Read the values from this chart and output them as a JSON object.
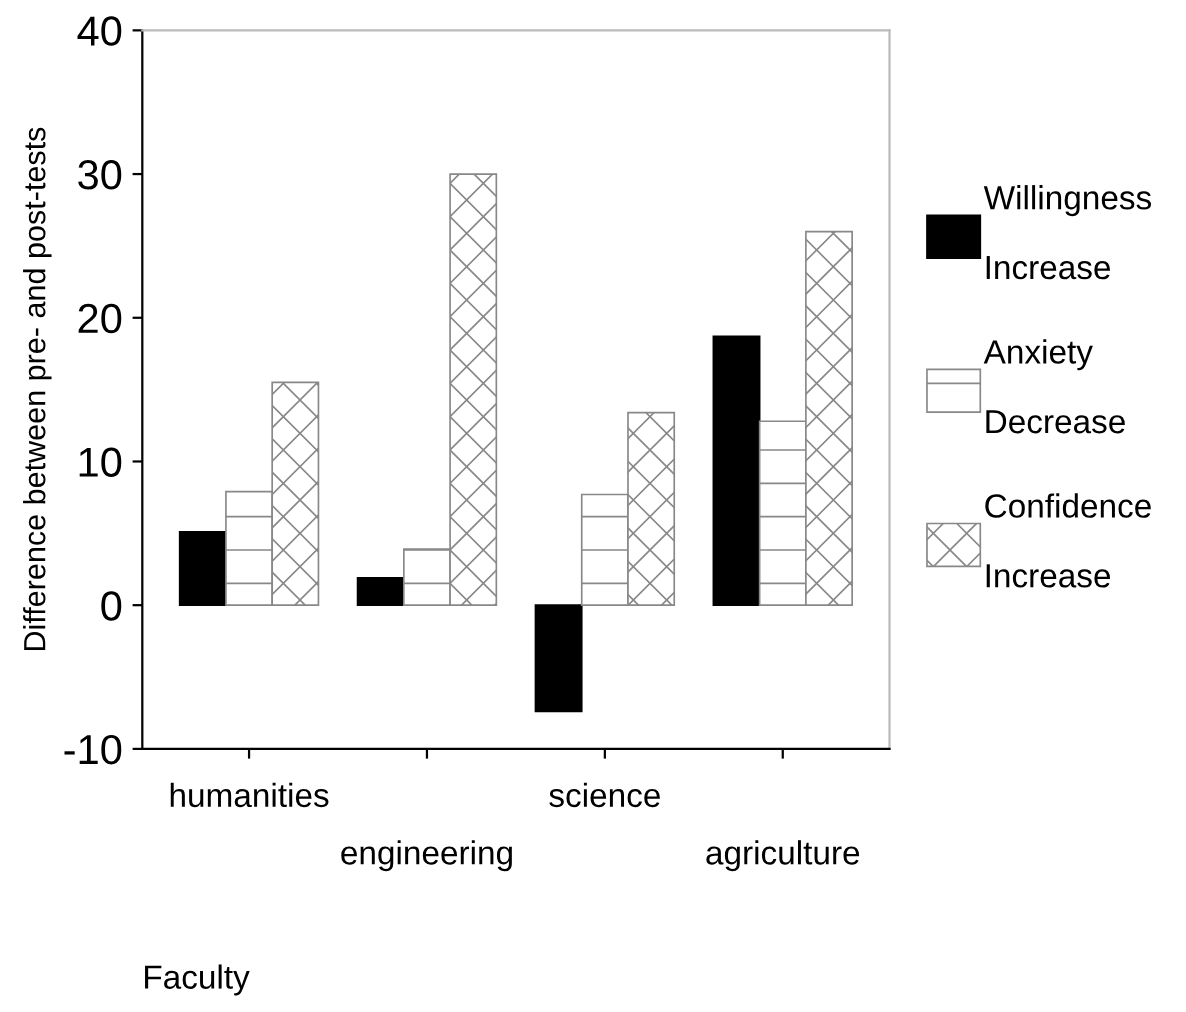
{
  "chart_data": {
    "type": "bar",
    "xlabel": "Faculty",
    "ylabel": "Difference between pre- and post-tests",
    "categories": [
      "humanities",
      "engineering",
      "science",
      "agriculture"
    ],
    "series": [
      {
        "name": "Willingness\nIncrease",
        "color": "#000000",
        "values": [
          5.1,
          1.9,
          -7.4,
          18.7
        ]
      },
      {
        "name": "Anxiety\nDecrease",
        "color": "#888888",
        "values": [
          7.9,
          3.9,
          7.7,
          12.8
        ]
      },
      {
        "name": "Confidence\nIncrease",
        "color": "#888888",
        "values": [
          15.5,
          30.0,
          13.4,
          26.0
        ]
      }
    ],
    "ylim": [
      -10,
      40
    ],
    "yticks": [
      -10,
      0,
      10,
      20,
      30,
      40
    ],
    "grid": false,
    "legend": "right"
  }
}
